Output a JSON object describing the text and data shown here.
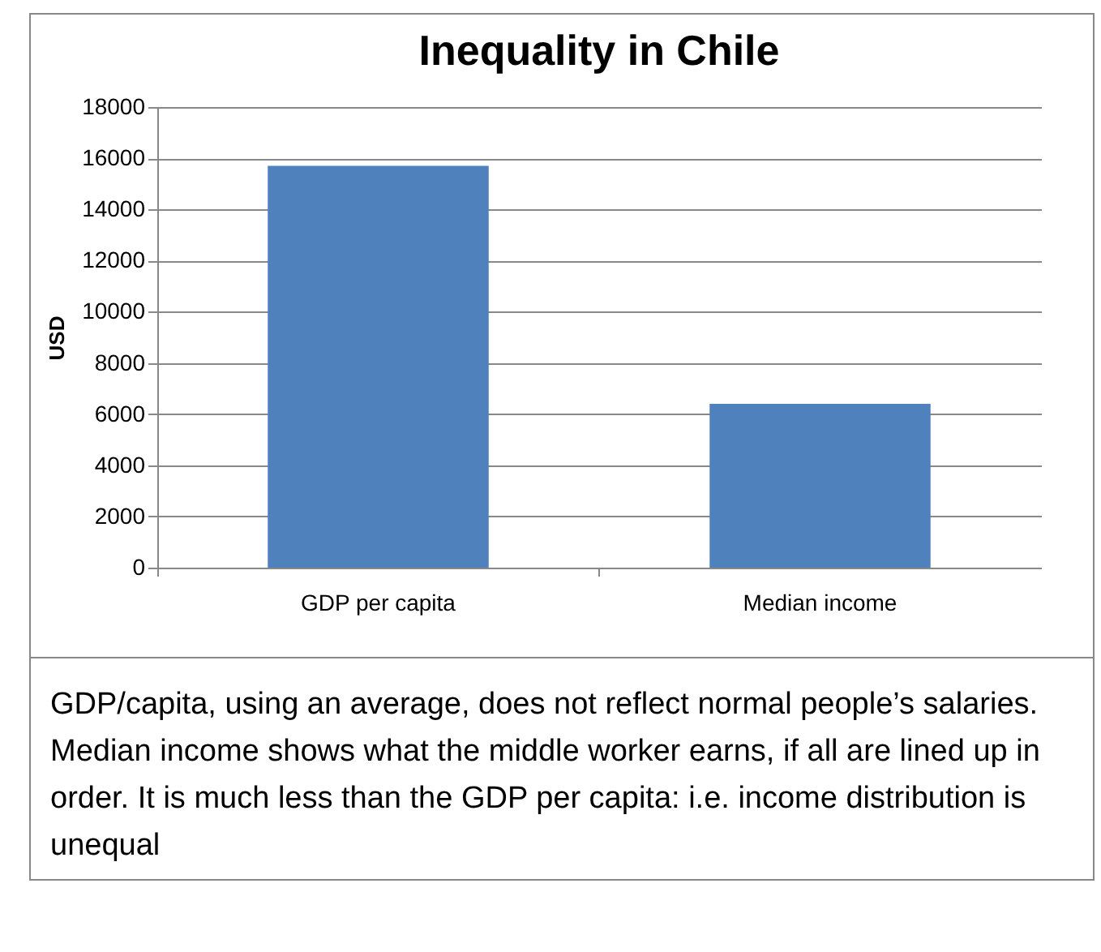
{
  "chart_data": {
    "type": "bar",
    "title": "Inequality in Chile",
    "ylabel": "USD",
    "categories": [
      "GDP per capita",
      "Median income"
    ],
    "values": [
      15700,
      6400
    ],
    "color": "#4f81bd",
    "ylim": [
      0,
      18000
    ],
    "yticks": [
      0,
      2000,
      4000,
      6000,
      8000,
      10000,
      12000,
      14000,
      16000,
      18000
    ],
    "grid": "y",
    "annotations": [
      "GDP/capita, using an average, does not reflect normal people’s salaries. Median income shows what the middle worker earns, if all are lined up in order. It is much less than the GDP per capita: i.e. income distribution is unequal"
    ]
  }
}
